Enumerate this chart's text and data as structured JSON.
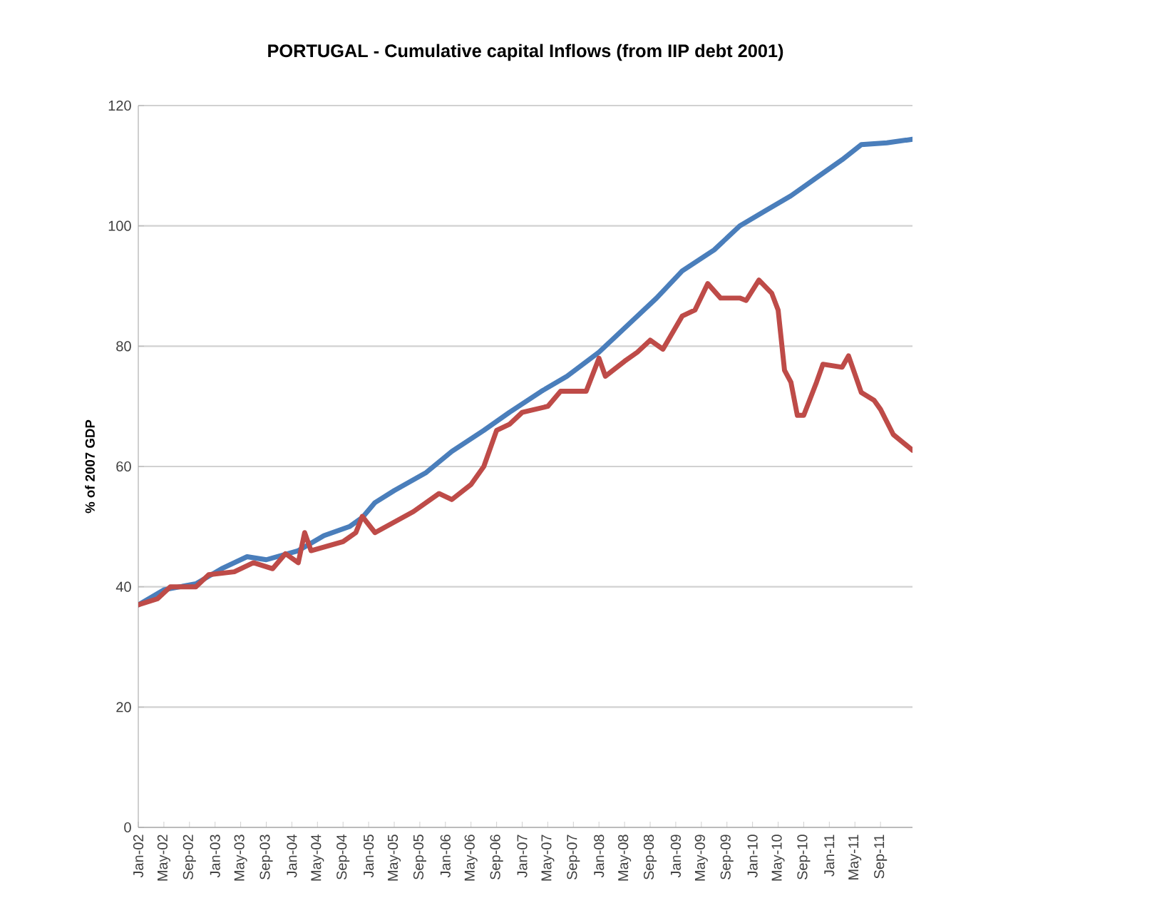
{
  "chart_data": {
    "type": "line",
    "title": "PORTUGAL - Cumulative capital Inflows (from IIP debt 2001)",
    "ylabel": "% of 2007 GDP",
    "ylim": [
      0,
      120
    ],
    "yticks": [
      0,
      20,
      40,
      60,
      80,
      100,
      120
    ],
    "grid": "y",
    "line_style": "solid",
    "xlim": [
      "2002-01",
      "2012-02"
    ],
    "xticks": [
      {
        "value": "2002-01",
        "label": "Jan-02"
      },
      {
        "value": "2002-05",
        "label": "May-02"
      },
      {
        "value": "2002-09",
        "label": "Sep-02"
      },
      {
        "value": "2003-01",
        "label": "Jan-03"
      },
      {
        "value": "2003-05",
        "label": "May-03"
      },
      {
        "value": "2003-09",
        "label": "Sep-03"
      },
      {
        "value": "2004-01",
        "label": "Jan-04"
      },
      {
        "value": "2004-05",
        "label": "May-04"
      },
      {
        "value": "2004-09",
        "label": "Sep-04"
      },
      {
        "value": "2005-01",
        "label": "Jan-05"
      },
      {
        "value": "2005-05",
        "label": "May-05"
      },
      {
        "value": "2005-09",
        "label": "Sep-05"
      },
      {
        "value": "2006-01",
        "label": "Jan-06"
      },
      {
        "value": "2006-05",
        "label": "May-06"
      },
      {
        "value": "2006-09",
        "label": "Sep-06"
      },
      {
        "value": "2007-01",
        "label": "Jan-07"
      },
      {
        "value": "2007-05",
        "label": "May-07"
      },
      {
        "value": "2007-09",
        "label": "Sep-07"
      },
      {
        "value": "2008-01",
        "label": "Jan-08"
      },
      {
        "value": "2008-05",
        "label": "May-08"
      },
      {
        "value": "2008-09",
        "label": "Sep-08"
      },
      {
        "value": "2009-01",
        "label": "Jan-09"
      },
      {
        "value": "2009-05",
        "label": "May-09"
      },
      {
        "value": "2009-09",
        "label": "Sep-09"
      },
      {
        "value": "2010-01",
        "label": "Jan-10"
      },
      {
        "value": "2010-05",
        "label": "May-10"
      },
      {
        "value": "2010-09",
        "label": "Sep-10"
      },
      {
        "value": "2011-01",
        "label": "Jan-11"
      },
      {
        "value": "2011-05",
        "label": "May-11"
      },
      {
        "value": "2011-09",
        "label": "Sep-11"
      }
    ],
    "series": [
      {
        "color": "#4a7ebb",
        "x": [
          "2002-01",
          "2002-05",
          "2002-10",
          "2003-02",
          "2003-06",
          "2003-09",
          "2004-02",
          "2004-06",
          "2004-10",
          "2004-12",
          "2005-02",
          "2005-05",
          "2005-10",
          "2006-02",
          "2006-07",
          "2006-11",
          "2007-04",
          "2007-08",
          "2008-01",
          "2008-05",
          "2008-10",
          "2009-02",
          "2009-07",
          "2009-11",
          "2010-03",
          "2010-07",
          "2010-11",
          "2011-03",
          "2011-06",
          "2011-10",
          "2012-02"
        ],
        "values": [
          37,
          39.5,
          40.5,
          43,
          45,
          44.5,
          46,
          48.5,
          50,
          51.5,
          54,
          56,
          59,
          62.5,
          66,
          69,
          72.5,
          75,
          79,
          83,
          88,
          92.5,
          96,
          100,
          102.5,
          105,
          108,
          111,
          113.5,
          113.8,
          114.4
        ]
      },
      {
        "color": "#be4b48",
        "x": [
          "2002-01",
          "2002-04",
          "2002-06",
          "2002-10",
          "2002-12",
          "2003-04",
          "2003-07",
          "2003-10",
          "2003-12",
          "2004-02",
          "2004-03",
          "2004-04",
          "2004-09",
          "2004-11",
          "2004-12",
          "2005-02",
          "2005-08",
          "2005-12",
          "2006-02",
          "2006-05",
          "2006-07",
          "2006-09",
          "2006-11",
          "2007-01",
          "2007-05",
          "2007-07",
          "2007-11",
          "2008-01",
          "2008-02",
          "2008-05",
          "2008-07",
          "2008-09",
          "2008-11",
          "2009-02",
          "2009-04",
          "2009-06",
          "2009-08",
          "2009-11",
          "2009-12",
          "2010-02",
          "2010-04",
          "2010-05",
          "2010-06",
          "2010-07",
          "2010-08",
          "2010-09",
          "2010-11",
          "2010-12",
          "2011-03",
          "2011-04",
          "2011-06",
          "2011-08",
          "2011-09",
          "2011-11",
          "2012-02"
        ],
        "values": [
          37,
          38,
          40,
          40,
          42,
          42.5,
          44,
          43,
          45.5,
          44,
          49,
          46,
          47.5,
          49,
          51.7,
          49,
          52.5,
          55.5,
          54.5,
          57,
          60,
          66,
          67,
          69,
          70,
          72.5,
          72.5,
          78,
          75,
          77.5,
          79,
          81,
          79.5,
          85,
          86,
          90.4,
          88,
          88,
          87.6,
          91,
          88.8,
          86,
          76,
          74,
          68.5,
          68.5,
          74,
          77,
          76.5,
          78.4,
          72.3,
          71,
          69.5,
          65.3,
          62.7
        ]
      }
    ]
  }
}
